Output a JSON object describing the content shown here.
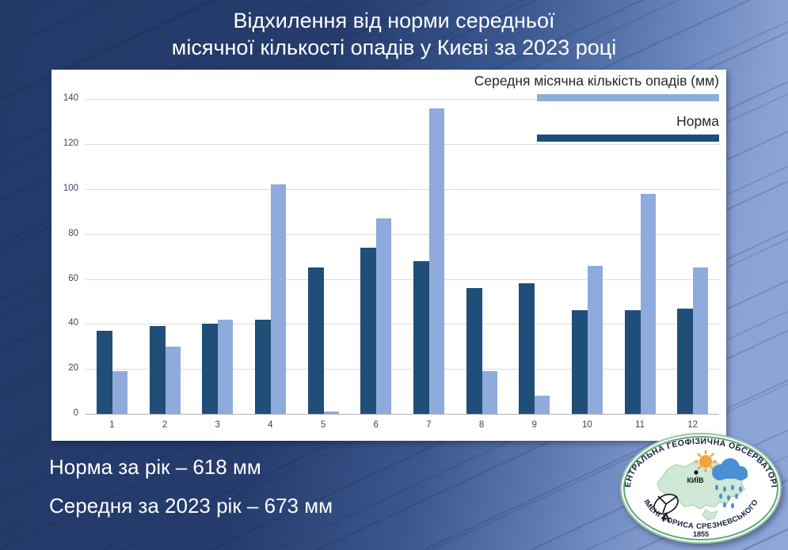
{
  "title": {
    "line1": "Відхилення від норми середньої",
    "line2": "місячної кількості опадів у Києві за 2023 році"
  },
  "legend": [
    {
      "label": "Середня місячна кількість опадів (мм)",
      "color": "#8FAADC"
    },
    {
      "label": "Норма",
      "color": "#1F4E79"
    }
  ],
  "chart_data": {
    "type": "bar",
    "title": "Відхилення від норми середньої місячної кількості опадів у Києві за 2023 році",
    "categories": [
      "1",
      "2",
      "3",
      "4",
      "5",
      "6",
      "7",
      "8",
      "9",
      "10",
      "11",
      "12"
    ],
    "series": [
      {
        "name": "Норма",
        "color": "#1F4E79",
        "values": [
          37,
          39,
          40,
          42,
          65,
          74,
          68,
          56,
          58,
          46,
          46,
          47
        ]
      },
      {
        "name": "Середня місячна кількість опадів (мм)",
        "color": "#8FAADC",
        "values": [
          19,
          30,
          42,
          102,
          1,
          87,
          136,
          19,
          8,
          66,
          98,
          65
        ]
      }
    ],
    "xlabel": "",
    "ylabel": "",
    "ylim": [
      0,
      140
    ],
    "yticks": [
      0,
      20,
      40,
      60,
      80,
      100,
      120,
      140
    ],
    "grid": true,
    "legend_position": "top-right"
  },
  "footer": {
    "norm_total": "Норма за рік – 618 мм",
    "avg_total": "Середня за 2023 рік – 673 мм"
  },
  "logo": {
    "arc_top": "ЦЕНТРАЛЬНА ГЕОФІЗИЧНА ОБСЕРВАТОРІЯ",
    "arc_bottom": "ІМЕНІ БОРИСА СРЕЗНЕВСЬКОГО",
    "year": "1855",
    "city": "КИЇВ"
  },
  "colors": {
    "norm_bar": "#1F4E79",
    "actual_bar": "#8FAADC",
    "background_dark": "#243A6B",
    "background_light": "#8EA7DA"
  }
}
